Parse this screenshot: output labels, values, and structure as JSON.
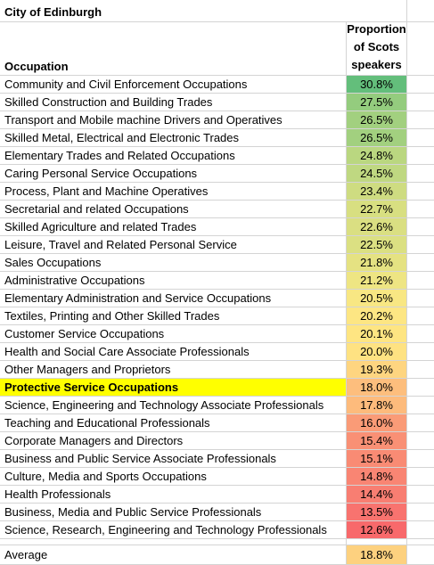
{
  "sheet": {
    "title": "City of Edinburgh",
    "column_header": "Occupation",
    "value_header_lines": [
      "Proportion",
      "of Scots",
      "speakers"
    ]
  },
  "rows": [
    {
      "occupation": "Community and Civil Enforcement Occupations",
      "value": "30.8%",
      "color": "#63be7b"
    },
    {
      "occupation": "Skilled Construction and Building Trades",
      "value": "27.5%",
      "color": "#94cc7e"
    },
    {
      "occupation": "Transport and Mobile machine Drivers and Operatives",
      "value": "26.5%",
      "color": "#a2d07f"
    },
    {
      "occupation": "Skilled Metal, Electrical and Electronic Trades",
      "value": "26.5%",
      "color": "#a2d07f"
    },
    {
      "occupation": "Elementary Trades and Related Occupations",
      "value": "24.8%",
      "color": "#bad780"
    },
    {
      "occupation": "Caring Personal Service Occupations",
      "value": "24.5%",
      "color": "#bfd881"
    },
    {
      "occupation": "Process, Plant and Machine Operatives",
      "value": "23.4%",
      "color": "#cedc81"
    },
    {
      "occupation": "Secretarial and related Occupations",
      "value": "22.7%",
      "color": "#d8df81"
    },
    {
      "occupation": "Skilled Agriculture and related Trades",
      "value": "22.6%",
      "color": "#dadf82"
    },
    {
      "occupation": "Leisure, Travel and Related Personal Service",
      "value": "22.5%",
      "color": "#dbe082"
    },
    {
      "occupation": "Sales Occupations",
      "value": "21.8%",
      "color": "#e5e282"
    },
    {
      "occupation": "Administrative Occupations",
      "value": "21.2%",
      "color": "#eee583"
    },
    {
      "occupation": "Elementary Administration and Service Occupations",
      "value": "20.5%",
      "color": "#f8e783"
    },
    {
      "occupation": "Textiles, Printing and Other Skilled Trades",
      "value": "20.2%",
      "color": "#fde683"
    },
    {
      "occupation": "Customer Service Occupations",
      "value": "20.1%",
      "color": "#fee582"
    },
    {
      "occupation": "Health and Social Care Associate Professionals",
      "value": "20.0%",
      "color": "#fee282"
    },
    {
      "occupation": "Other Managers and Proprietors",
      "value": "19.3%",
      "color": "#fed580"
    },
    {
      "occupation": "Protective Service Occupations",
      "value": "18.0%",
      "color": "#fdbe7d",
      "highlight": true
    },
    {
      "occupation": "Science, Engineering and Technology Associate Professionals",
      "value": "17.8%",
      "color": "#fdbb7c"
    },
    {
      "occupation": "Teaching and Educational Professionals",
      "value": "16.0%",
      "color": "#fa9b77"
    },
    {
      "occupation": "Corporate Managers and Directors",
      "value": "15.4%",
      "color": "#f99075"
    },
    {
      "occupation": "Business and Public Service Associate Professionals",
      "value": "15.1%",
      "color": "#f98b74"
    },
    {
      "occupation": "Culture, Media and Sports Occupations",
      "value": "14.8%",
      "color": "#f98573"
    },
    {
      "occupation": "Health Professionals",
      "value": "14.4%",
      "color": "#f87e72"
    },
    {
      "occupation": "Business, Media and Public Service Professionals",
      "value": "13.5%",
      "color": "#f8736f"
    },
    {
      "occupation": "Science, Research, Engineering and Technology Professionals",
      "value": "12.6%",
      "color": "#f8696b"
    }
  ],
  "average": {
    "label": "Average",
    "value": "18.8%",
    "color": "#fdd17f"
  },
  "colors": {
    "gridline": "#d4d4d4",
    "highlight": "#ffff00"
  }
}
